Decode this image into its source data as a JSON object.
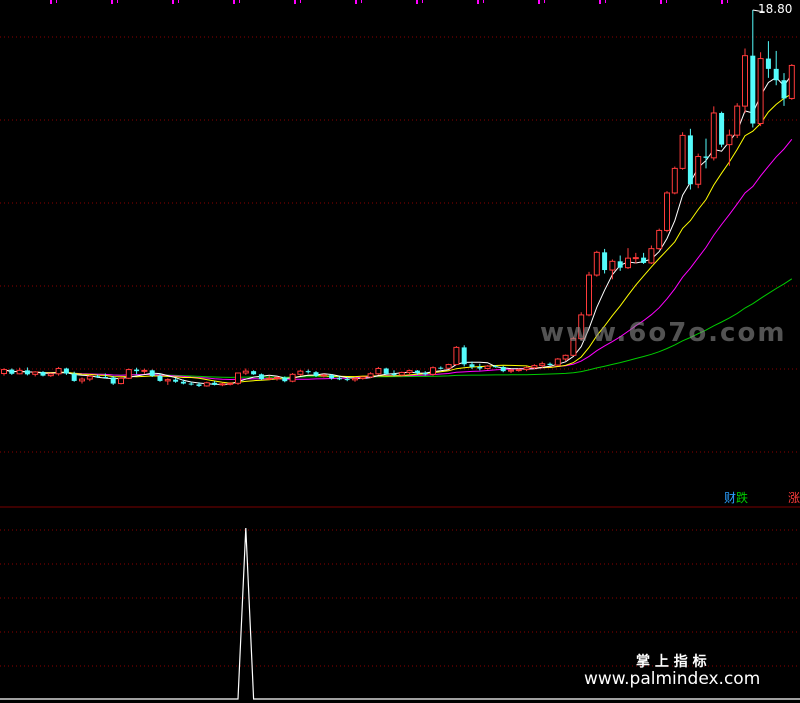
{
  "chart_data": {
    "type": "candlestick",
    "y_axis_max_label": "18.80",
    "grid": true,
    "candles": [
      [
        5.03,
        5.23,
        4.95,
        5.18
      ],
      [
        5.18,
        5.22,
        4.98,
        5.02
      ],
      [
        5.02,
        5.25,
        5.0,
        5.15
      ],
      [
        5.15,
        5.26,
        4.96,
        5.0
      ],
      [
        5.0,
        5.12,
        4.92,
        5.09
      ],
      [
        5.09,
        5.12,
        4.92,
        4.95
      ],
      [
        4.95,
        5.05,
        4.9,
        5.02
      ],
      [
        5.02,
        5.28,
        4.95,
        5.22
      ],
      [
        5.22,
        5.25,
        4.98,
        5.03
      ],
      [
        5.03,
        5.1,
        4.72,
        4.75
      ],
      [
        4.75,
        4.88,
        4.65,
        4.82
      ],
      [
        4.82,
        4.98,
        4.74,
        4.93
      ],
      [
        4.93,
        4.99,
        4.86,
        4.9
      ],
      [
        4.9,
        5.03,
        4.85,
        4.88
      ],
      [
        4.88,
        4.94,
        4.6,
        4.65
      ],
      [
        4.65,
        4.9,
        4.62,
        4.85
      ],
      [
        4.85,
        5.22,
        4.82,
        5.18
      ],
      [
        5.18,
        5.25,
        5.0,
        5.12
      ],
      [
        5.12,
        5.22,
        5.02,
        5.15
      ],
      [
        5.15,
        5.18,
        4.9,
        4.94
      ],
      [
        4.94,
        5.02,
        4.72,
        4.75
      ],
      [
        4.75,
        4.85,
        4.6,
        4.8
      ],
      [
        4.8,
        4.86,
        4.68,
        4.72
      ],
      [
        4.72,
        4.8,
        4.62,
        4.65
      ],
      [
        4.65,
        4.72,
        4.58,
        4.62
      ],
      [
        4.62,
        4.7,
        4.52,
        4.56
      ],
      [
        4.56,
        4.72,
        4.53,
        4.68
      ],
      [
        4.68,
        4.75,
        4.58,
        4.6
      ],
      [
        4.6,
        4.68,
        4.55,
        4.64
      ],
      [
        4.64,
        4.7,
        4.58,
        4.66
      ],
      [
        4.66,
        5.07,
        4.6,
        5.05
      ],
      [
        5.05,
        5.22,
        4.98,
        5.12
      ],
      [
        5.12,
        5.15,
        4.98,
        5.0
      ],
      [
        5.0,
        5.03,
        4.78,
        4.82
      ],
      [
        4.82,
        4.95,
        4.78,
        4.85
      ],
      [
        4.85,
        4.92,
        4.76,
        4.88
      ],
      [
        4.88,
        4.92,
        4.7,
        4.74
      ],
      [
        4.74,
        5.05,
        4.7,
        5.0
      ],
      [
        5.0,
        5.17,
        4.95,
        5.12
      ],
      [
        5.12,
        5.18,
        5.03,
        5.08
      ],
      [
        5.08,
        5.12,
        4.9,
        4.94
      ],
      [
        4.94,
        5.02,
        4.88,
        4.97
      ],
      [
        4.97,
        5.0,
        4.8,
        4.85
      ],
      [
        4.85,
        4.92,
        4.78,
        4.82
      ],
      [
        4.82,
        4.9,
        4.74,
        4.79
      ],
      [
        4.79,
        4.88,
        4.72,
        4.84
      ],
      [
        4.84,
        4.92,
        4.8,
        4.9
      ],
      [
        4.9,
        5.08,
        4.86,
        5.02
      ],
      [
        5.02,
        5.28,
        4.98,
        5.22
      ],
      [
        5.22,
        5.25,
        4.98,
        5.02
      ],
      [
        5.02,
        5.15,
        4.92,
        4.97
      ],
      [
        4.97,
        5.1,
        4.92,
        5.07
      ],
      [
        5.07,
        5.18,
        5.01,
        5.14
      ],
      [
        5.14,
        5.16,
        4.98,
        5.05
      ],
      [
        5.05,
        5.12,
        4.95,
        5.0
      ],
      [
        5.0,
        5.3,
        4.95,
        5.25
      ],
      [
        5.25,
        5.3,
        5.18,
        5.23
      ],
      [
        5.23,
        5.4,
        5.2,
        5.37
      ],
      [
        5.37,
        6.07,
        5.35,
        6.02
      ],
      [
        6.02,
        6.1,
        5.3,
        5.38
      ],
      [
        5.38,
        5.48,
        5.2,
        5.28
      ],
      [
        5.28,
        5.4,
        5.15,
        5.22
      ],
      [
        5.22,
        5.35,
        5.18,
        5.31
      ],
      [
        5.31,
        5.35,
        5.25,
        5.28
      ],
      [
        5.28,
        5.32,
        5.08,
        5.12
      ],
      [
        5.12,
        5.2,
        5.05,
        5.16
      ],
      [
        5.16,
        5.22,
        5.1,
        5.18
      ],
      [
        5.18,
        5.3,
        5.12,
        5.25
      ],
      [
        5.25,
        5.38,
        5.2,
        5.33
      ],
      [
        5.33,
        5.48,
        5.25,
        5.4
      ],
      [
        5.4,
        5.45,
        5.32,
        5.35
      ],
      [
        5.35,
        5.62,
        5.32,
        5.58
      ],
      [
        5.58,
        5.75,
        5.5,
        5.72
      ],
      [
        5.72,
        6.42,
        5.7,
        6.35
      ],
      [
        6.35,
        7.35,
        6.3,
        7.25
      ],
      [
        7.25,
        8.88,
        7.2,
        8.76
      ],
      [
        8.76,
        9.68,
        8.7,
        9.62
      ],
      [
        9.62,
        9.75,
        8.82,
        8.95
      ],
      [
        8.95,
        9.35,
        8.6,
        9.28
      ],
      [
        9.28,
        9.5,
        8.92,
        9.04
      ],
      [
        9.04,
        9.78,
        8.99,
        9.4
      ],
      [
        9.4,
        9.6,
        9.2,
        9.42
      ],
      [
        9.42,
        9.6,
        9.18,
        9.22
      ],
      [
        9.22,
        9.88,
        9.18,
        9.76
      ],
      [
        9.76,
        10.52,
        9.72,
        10.45
      ],
      [
        10.45,
        11.94,
        10.38,
        11.87
      ],
      [
        11.87,
        12.87,
        11.82,
        12.8
      ],
      [
        12.8,
        14.17,
        12.75,
        14.05
      ],
      [
        14.05,
        14.3,
        12.0,
        12.2
      ],
      [
        12.2,
        13.36,
        12.05,
        13.25
      ],
      [
        13.25,
        13.93,
        12.8,
        13.2
      ],
      [
        13.2,
        15.15,
        13.1,
        14.9
      ],
      [
        14.9,
        14.95,
        13.6,
        13.7
      ],
      [
        13.7,
        14.27,
        12.9,
        14.06
      ],
      [
        14.06,
        15.27,
        13.95,
        15.16
      ],
      [
        15.16,
        17.34,
        14.9,
        17.07
      ],
      [
        17.07,
        18.8,
        14.35,
        14.5
      ],
      [
        14.5,
        17.2,
        14.4,
        16.96
      ],
      [
        16.96,
        17.62,
        16.23,
        16.57
      ],
      [
        16.57,
        17.25,
        15.95,
        16.14
      ],
      [
        16.14,
        16.41,
        15.17,
        15.45
      ],
      [
        15.45,
        16.75,
        15.4,
        16.7
      ]
    ],
    "indicator": {
      "x": [
        29,
        30,
        31
      ],
      "values": [
        0,
        1,
        0
      ]
    },
    "watermarks": [
      "www.6o7o.com",
      "掌 上 指 标",
      "www.palmindex.com"
    ],
    "legend_texts": [
      "财",
      "跌",
      "涨"
    ]
  },
  "colors": {
    "background": "#000000",
    "up": "#ff3b3b",
    "down": "#54fcfc",
    "ma5": "#ffffff",
    "ma10": "#ffff00",
    "ma20": "#ff00ff",
    "ma60": "#00cc00",
    "grid": "#8b0000",
    "separator": "#7a0000",
    "marker": "#ff00ff",
    "indicator_line": "#ffffff",
    "label": "#ffffff",
    "legend_cai": "#2aa0ff",
    "legend_die": "#00cc00",
    "legend_zhang": "#ff3b3b"
  }
}
